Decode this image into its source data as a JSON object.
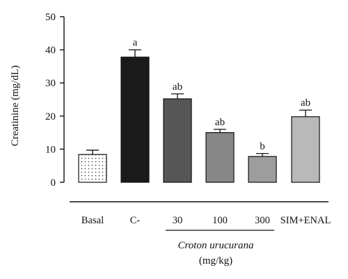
{
  "chart_data": {
    "type": "bar",
    "title": "",
    "ylabel": "Creatinine (mg/dL)",
    "xlabel": "",
    "ylim": [
      0,
      50
    ],
    "yticks": [
      0,
      10,
      20,
      30,
      40,
      50
    ],
    "grid": false,
    "categories": [
      "Basal",
      "C-",
      "30",
      "100",
      "300",
      "SIM+ENAL"
    ],
    "values": [
      8.4,
      37.8,
      25.2,
      15.0,
      7.8,
      19.8
    ],
    "errors": [
      1.3,
      2.2,
      1.5,
      1.0,
      0.9,
      2.0
    ],
    "significance": [
      "",
      "a",
      "ab",
      "ab",
      "b",
      "ab"
    ],
    "bar_colors": [
      "#ffffff",
      "#1a1a1a",
      "#565656",
      "#878787",
      "#9d9d9d",
      "#b9b9b9"
    ],
    "bar_patterns": [
      "dots",
      "solid",
      "solid",
      "solid",
      "solid",
      "solid"
    ],
    "group_label": {
      "name": "Croton urucurana",
      "unit": "(mg/kg)",
      "members": [
        "30",
        "100",
        "300"
      ]
    }
  }
}
